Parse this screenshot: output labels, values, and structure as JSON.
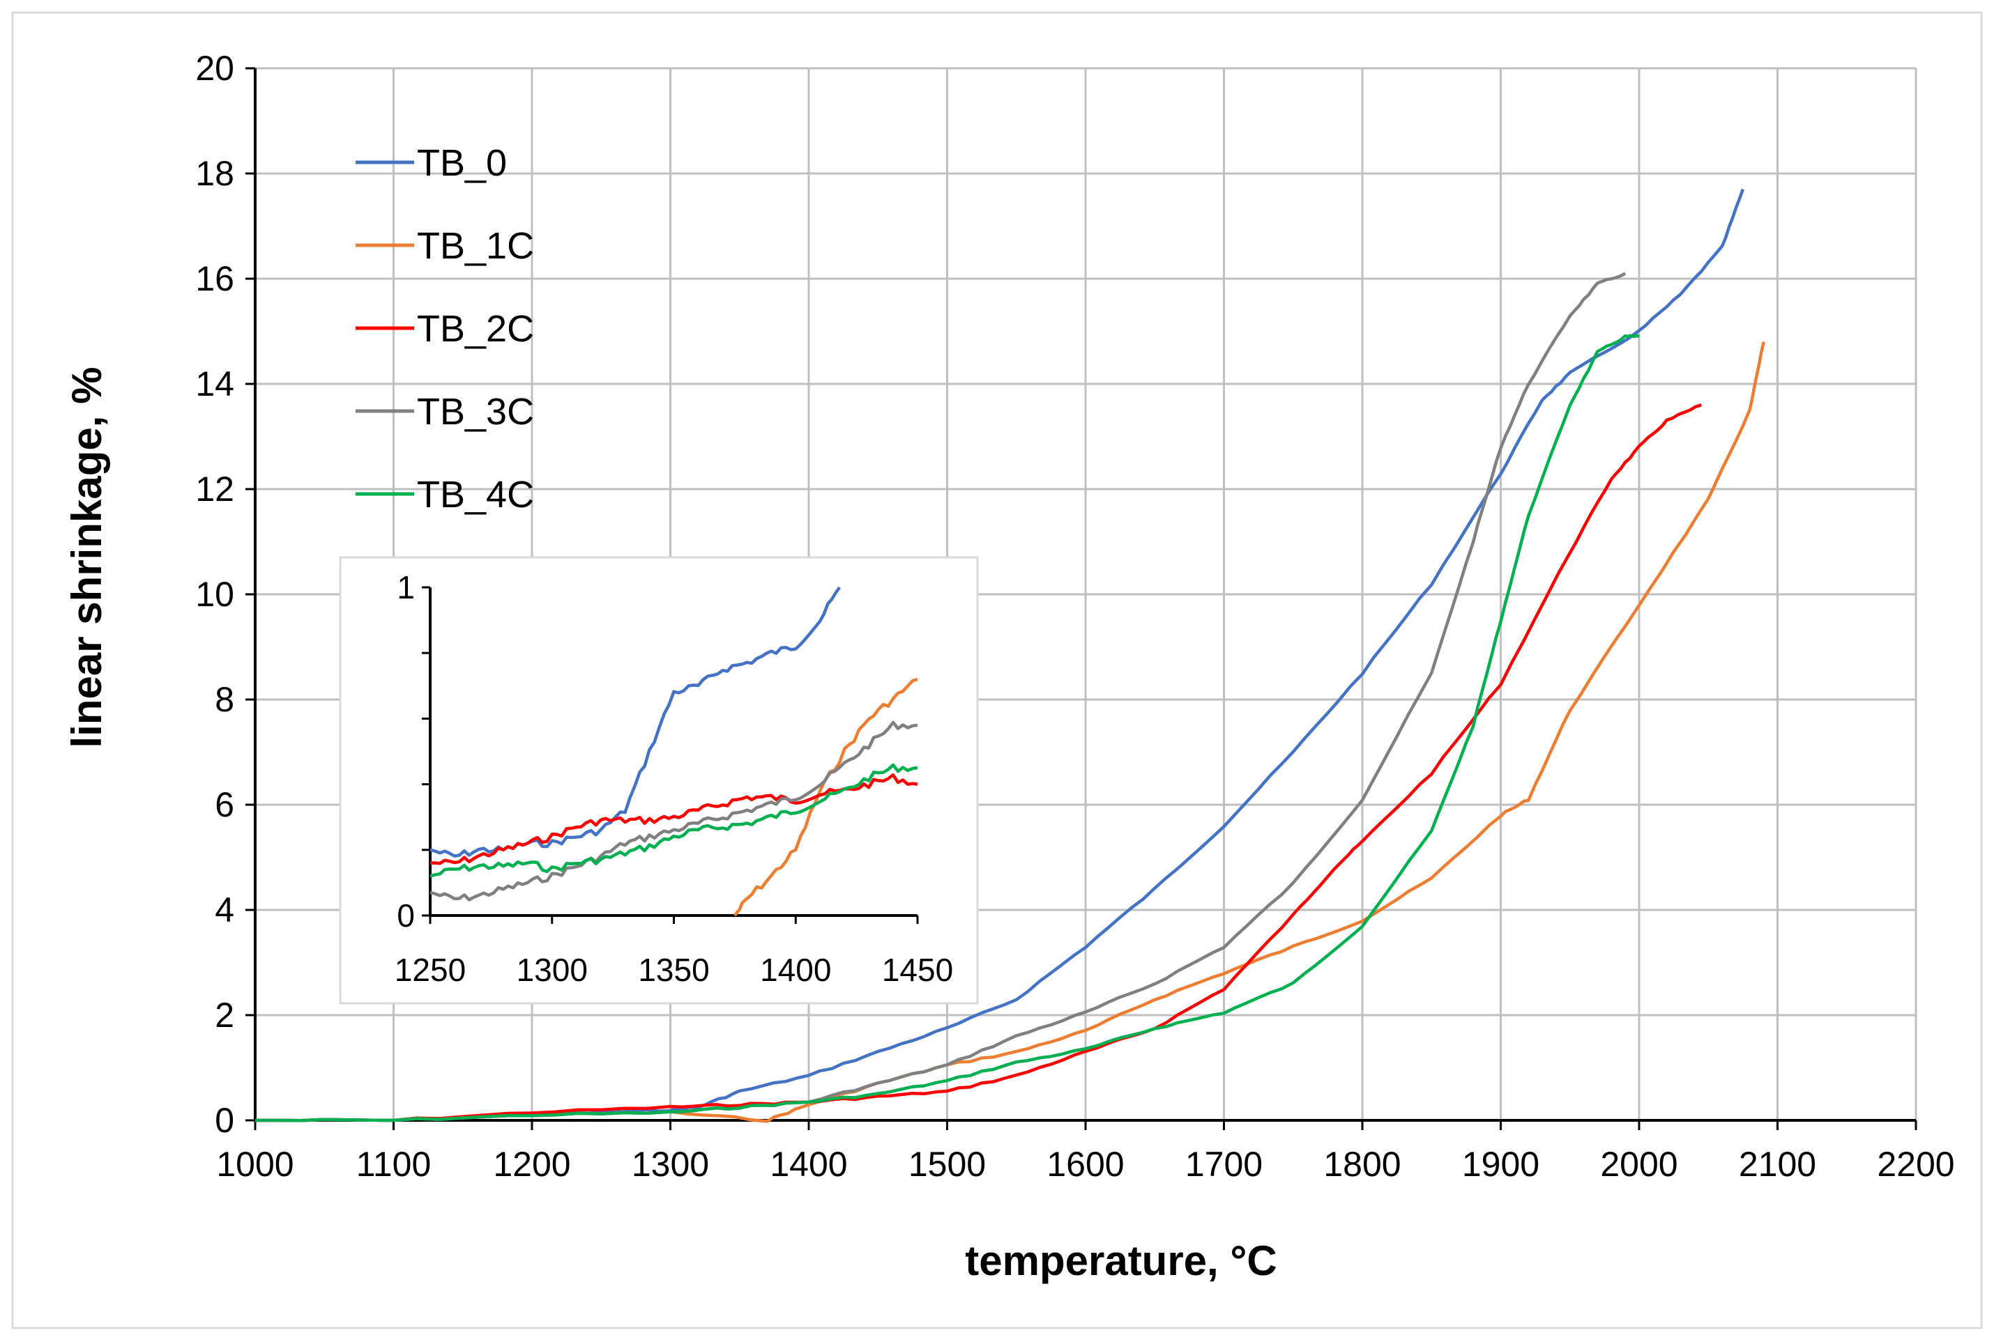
{
  "chart_data": {
    "type": "line",
    "title": "",
    "xlabel": "temperature, °C",
    "ylabel": "linear shrinkage, %",
    "xlim": [
      1000,
      2200
    ],
    "ylim": [
      0,
      20
    ],
    "xticks": [
      1000,
      1100,
      1200,
      1300,
      1400,
      1500,
      1600,
      1700,
      1800,
      1900,
      2000,
      2100,
      2200
    ],
    "yticks": [
      0,
      2,
      4,
      6,
      8,
      10,
      12,
      14,
      16,
      18,
      20
    ],
    "grid": true,
    "legend_position": "top-left",
    "colors": {
      "TB_0": "#4472C4",
      "TB_1C": "#ED7D31",
      "TB_2C": "#FF0000",
      "TB_3C": "#808080",
      "TB_4C": "#00B050"
    },
    "series": [
      {
        "name": "TB_0",
        "x": [
          1000,
          1100,
          1200,
          1250,
          1300,
          1320,
          1350,
          1400,
          1450,
          1500,
          1550,
          1600,
          1650,
          1700,
          1750,
          1800,
          1850,
          1900,
          1930,
          1950,
          2000,
          2030,
          2060,
          2075
        ],
        "y": [
          0,
          0,
          0.1,
          0.15,
          0.2,
          0.25,
          0.55,
          0.85,
          1.3,
          1.75,
          2.3,
          3.3,
          4.4,
          5.6,
          7.0,
          8.5,
          10.2,
          12.3,
          13.7,
          14.2,
          15.0,
          15.7,
          16.6,
          17.7
        ]
      },
      {
        "name": "TB_1C",
        "x": [
          1000,
          1100,
          1200,
          1300,
          1370,
          1400,
          1450,
          1500,
          1550,
          1600,
          1650,
          1700,
          1750,
          1800,
          1850,
          1900,
          1920,
          1950,
          2000,
          2050,
          2080,
          2090
        ],
        "y": [
          0,
          0,
          0.1,
          0.15,
          0,
          0.3,
          0.7,
          1.05,
          1.3,
          1.7,
          2.3,
          2.8,
          3.3,
          3.8,
          4.6,
          5.8,
          6.1,
          7.8,
          9.8,
          11.8,
          13.5,
          14.8
        ]
      },
      {
        "name": "TB_2C",
        "x": [
          1000,
          1100,
          1200,
          1300,
          1350,
          1400,
          1450,
          1500,
          1550,
          1600,
          1650,
          1700,
          1750,
          1780,
          1800,
          1850,
          1900,
          1950,
          1980,
          2000,
          2020,
          2045
        ],
        "y": [
          0,
          0,
          0.15,
          0.25,
          0.3,
          0.35,
          0.45,
          0.55,
          0.85,
          1.3,
          1.75,
          2.5,
          3.9,
          4.8,
          5.3,
          6.6,
          8.3,
          10.8,
          12.2,
          12.8,
          13.3,
          13.6
        ]
      },
      {
        "name": "TB_3C",
        "x": [
          1000,
          1100,
          1200,
          1300,
          1350,
          1400,
          1450,
          1500,
          1550,
          1600,
          1650,
          1700,
          1750,
          1800,
          1850,
          1880,
          1900,
          1920,
          1950,
          1970,
          1990
        ],
        "y": [
          0,
          0,
          0.1,
          0.15,
          0.25,
          0.35,
          0.7,
          1.05,
          1.6,
          2.05,
          2.6,
          3.3,
          4.5,
          6.1,
          8.5,
          11.0,
          12.8,
          14.0,
          15.3,
          15.9,
          16.1
        ]
      },
      {
        "name": "TB_4C",
        "x": [
          1000,
          1100,
          1200,
          1300,
          1350,
          1400,
          1450,
          1500,
          1550,
          1600,
          1650,
          1700,
          1750,
          1800,
          1850,
          1880,
          1900,
          1920,
          1950,
          1970,
          1990,
          2000
        ],
        "y": [
          0,
          0,
          0.1,
          0.15,
          0.25,
          0.35,
          0.5,
          0.75,
          1.1,
          1.35,
          1.75,
          2.05,
          2.6,
          3.7,
          5.5,
          7.5,
          9.5,
          11.5,
          13.6,
          14.6,
          14.9,
          14.9
        ]
      }
    ],
    "inset": {
      "xlim": [
        1250,
        1450
      ],
      "ylim": [
        0,
        1
      ],
      "xticks": [
        1250,
        1300,
        1350,
        1400,
        1450
      ],
      "ytick_labels": [
        0,
        1
      ],
      "y_minor_ticks": [
        0.2,
        0.4,
        0.6,
        0.8
      ],
      "series": [
        {
          "name": "TB_0",
          "x": [
            1250,
            1260,
            1270,
            1280,
            1290,
            1300,
            1310,
            1320,
            1330,
            1340,
            1350,
            1360,
            1370,
            1380,
            1390,
            1400,
            1410,
            1418
          ],
          "y": [
            0.2,
            0.18,
            0.2,
            0.2,
            0.22,
            0.22,
            0.24,
            0.26,
            0.32,
            0.5,
            0.68,
            0.7,
            0.75,
            0.77,
            0.8,
            0.82,
            0.9,
            1.0
          ]
        },
        {
          "name": "TB_1C",
          "x": [
            1375,
            1380,
            1390,
            1400,
            1410,
            1420,
            1430,
            1440,
            1450
          ],
          "y": [
            0,
            0.05,
            0.12,
            0.2,
            0.38,
            0.5,
            0.6,
            0.66,
            0.72
          ]
        },
        {
          "name": "TB_2C",
          "x": [
            1250,
            1260,
            1270,
            1280,
            1290,
            1300,
            1310,
            1320,
            1330,
            1340,
            1350,
            1360,
            1370,
            1380,
            1390,
            1400,
            1410,
            1420,
            1430,
            1440,
            1450
          ],
          "y": [
            0.16,
            0.16,
            0.18,
            0.2,
            0.22,
            0.24,
            0.27,
            0.29,
            0.29,
            0.29,
            0.3,
            0.32,
            0.34,
            0.36,
            0.36,
            0.35,
            0.37,
            0.38,
            0.4,
            0.42,
            0.4
          ]
        },
        {
          "name": "TB_3C",
          "x": [
            1250,
            1260,
            1270,
            1280,
            1290,
            1300,
            1310,
            1320,
            1330,
            1340,
            1350,
            1360,
            1370,
            1380,
            1390,
            1400,
            1410,
            1420,
            1430,
            1440,
            1450
          ],
          "y": [
            0.07,
            0.05,
            0.06,
            0.08,
            0.1,
            0.12,
            0.15,
            0.18,
            0.22,
            0.24,
            0.26,
            0.28,
            0.3,
            0.32,
            0.34,
            0.36,
            0.4,
            0.46,
            0.52,
            0.58,
            0.58
          ]
        },
        {
          "name": "TB_4C",
          "x": [
            1250,
            1260,
            1270,
            1280,
            1290,
            1300,
            1310,
            1320,
            1330,
            1340,
            1350,
            1360,
            1370,
            1380,
            1390,
            1400,
            1410,
            1420,
            1430,
            1440,
            1450
          ],
          "y": [
            0.12,
            0.14,
            0.15,
            0.15,
            0.16,
            0.14,
            0.16,
            0.17,
            0.19,
            0.21,
            0.24,
            0.26,
            0.27,
            0.28,
            0.3,
            0.32,
            0.35,
            0.38,
            0.42,
            0.45,
            0.45
          ]
        }
      ]
    }
  }
}
